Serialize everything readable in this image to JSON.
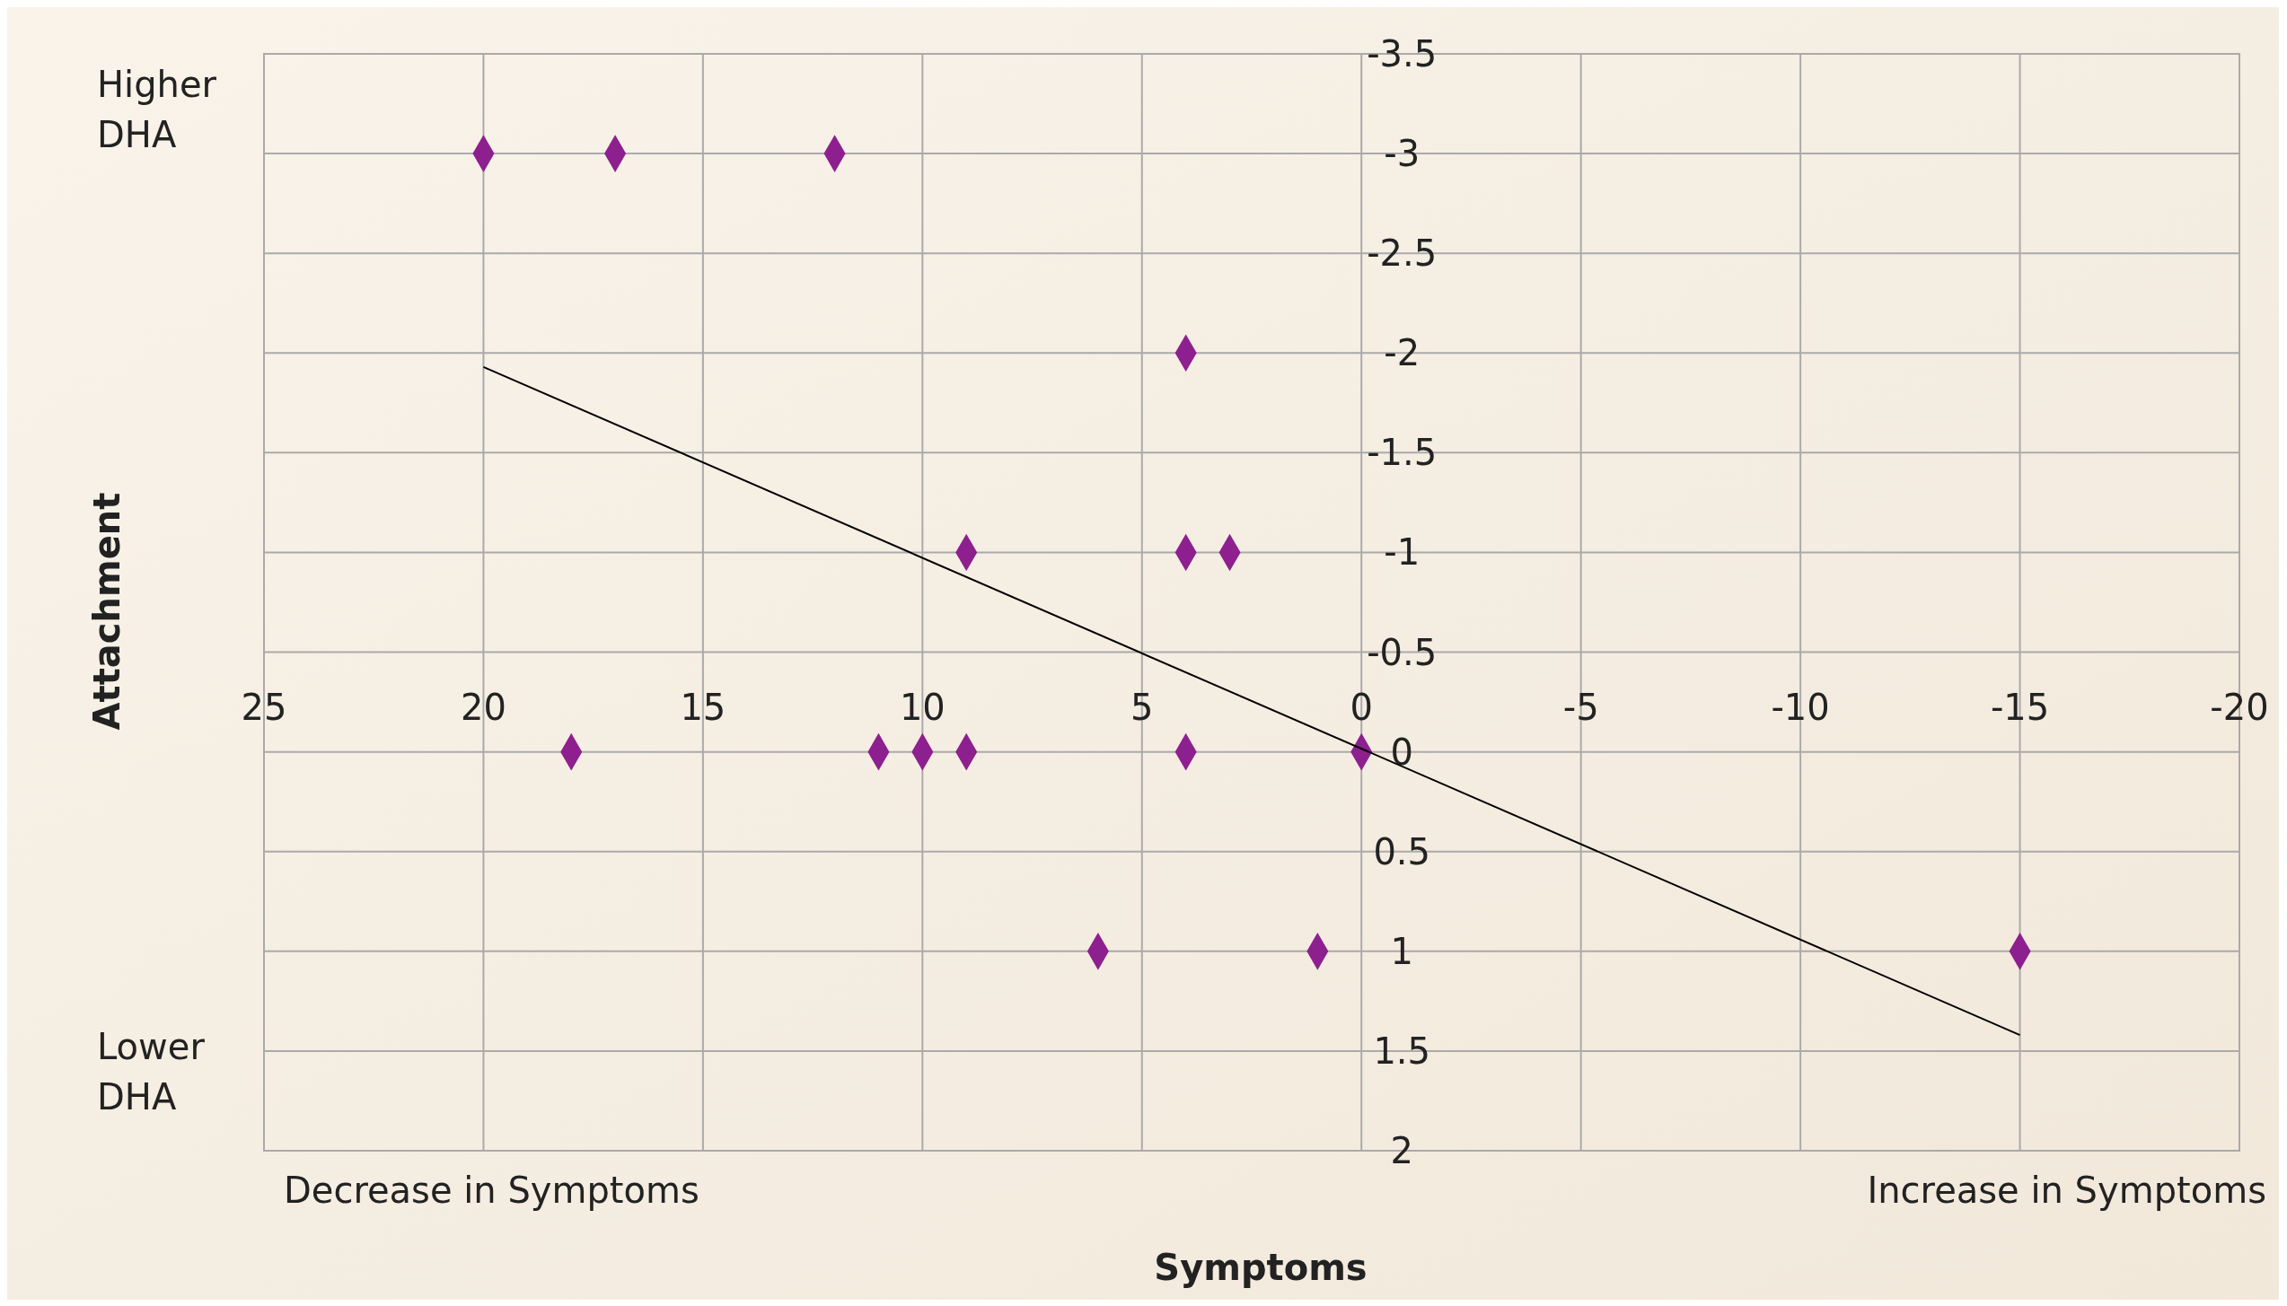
{
  "chart_data": {
    "type": "scatter",
    "xlabel": "Symptoms",
    "ylabel": "Attachment",
    "annotations": [
      "Higher DHA",
      "Lower DHA",
      "Decrease in Symptoms",
      "Increase in Symptoms"
    ],
    "xlim": [
      25,
      -20
    ],
    "xticks": [
      25,
      20,
      15,
      10,
      5,
      0,
      -5,
      -10,
      -15,
      -20
    ],
    "ylim": [
      2,
      -3.5
    ],
    "yticks": [
      -3.5,
      -3,
      -2.5,
      -2,
      -1.5,
      -1,
      -0.5,
      0,
      0.5,
      1,
      1.5,
      2
    ],
    "grid": true,
    "series": [
      {
        "color": "#8e1f8e",
        "marker": "diamond",
        "x": [
          20,
          17,
          12,
          4,
          9,
          4,
          3,
          18,
          11,
          10,
          9,
          4,
          0,
          6,
          1,
          -15
        ],
        "values": [
          -3,
          -3,
          -3,
          -2,
          -1,
          -1,
          -1,
          0,
          0,
          0,
          0,
          0,
          0,
          1,
          1,
          1
        ]
      },
      {
        "type": "line",
        "color": "#000000",
        "marker": "none",
        "x": [
          20,
          -15
        ],
        "values": [
          -1.93,
          1.42
        ]
      }
    ]
  }
}
